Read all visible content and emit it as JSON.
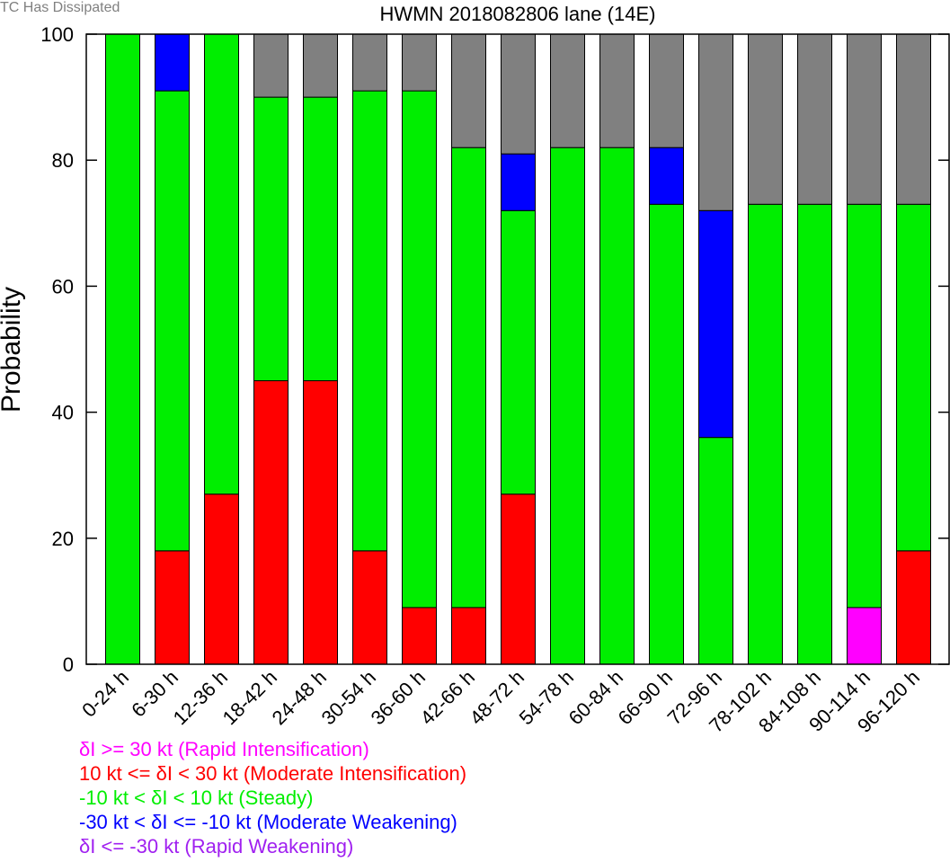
{
  "chart_data": {
    "type": "bar",
    "stacked": true,
    "title": "HWMN 2018082806 lane (14E)",
    "xlabel": "",
    "ylabel": "Probability",
    "ylim": [
      0,
      100
    ],
    "yticks": [
      0,
      20,
      40,
      60,
      80,
      100
    ],
    "grid": false,
    "categories": [
      "0-24 h",
      "6-30 h",
      "12-36 h",
      "18-42 h",
      "24-48 h",
      "30-54 h",
      "36-60 h",
      "42-66 h",
      "48-72 h",
      "54-78 h",
      "60-84 h",
      "66-90 h",
      "72-96 h",
      "78-102 h",
      "84-108 h",
      "90-114 h",
      "96-120 h"
    ],
    "series": [
      {
        "name": "Rapid Intensification",
        "color": "#ff00ff",
        "values": [
          0,
          0,
          0,
          0,
          0,
          0,
          0,
          0,
          0,
          0,
          0,
          0,
          0,
          0,
          0,
          9,
          0
        ]
      },
      {
        "name": "Moderate Intensification",
        "color": "#ff0000",
        "values": [
          0,
          18,
          27,
          45,
          45,
          18,
          9,
          9,
          27,
          0,
          0,
          0,
          0,
          0,
          0,
          0,
          18
        ]
      },
      {
        "name": "Steady",
        "color": "#00ee00",
        "values": [
          100,
          73,
          73,
          45,
          45,
          73,
          82,
          73,
          45,
          82,
          82,
          73,
          36,
          73,
          73,
          64,
          55
        ]
      },
      {
        "name": "Moderate Weakening",
        "color": "#0000ff",
        "values": [
          0,
          9,
          0,
          0,
          0,
          0,
          0,
          0,
          9,
          0,
          0,
          9,
          36,
          0,
          0,
          0,
          0
        ]
      },
      {
        "name": "Rapid Weakening",
        "color": "#a020f0",
        "values": [
          0,
          0,
          0,
          0,
          0,
          0,
          0,
          0,
          0,
          0,
          0,
          0,
          0,
          0,
          0,
          0,
          0
        ]
      },
      {
        "name": "TC Has Dissipated",
        "color": "#808080",
        "values": [
          0,
          0,
          0,
          10,
          10,
          9,
          9,
          18,
          19,
          18,
          18,
          18,
          28,
          27,
          27,
          27,
          27
        ]
      }
    ]
  },
  "legend": [
    {
      "text": "δI >= 30 kt (Rapid Intensification)",
      "color": "#ff00ff"
    },
    {
      "text": "10 kt <= δI < 30 kt (Moderate Intensification)",
      "color": "#ff0000"
    },
    {
      "text": "-10 kt < δI < 10 kt (Steady)",
      "color": "#00ee00"
    },
    {
      "text": "-30 kt < δI <= -10 kt (Moderate Weakening)",
      "color": "#0000ff"
    },
    {
      "text": "δI <= -30 kt (Rapid Weakening)",
      "color": "#a020f0"
    }
  ],
  "legend_dissipated": {
    "text": "TC Has Dissipated",
    "color": "#808080"
  }
}
